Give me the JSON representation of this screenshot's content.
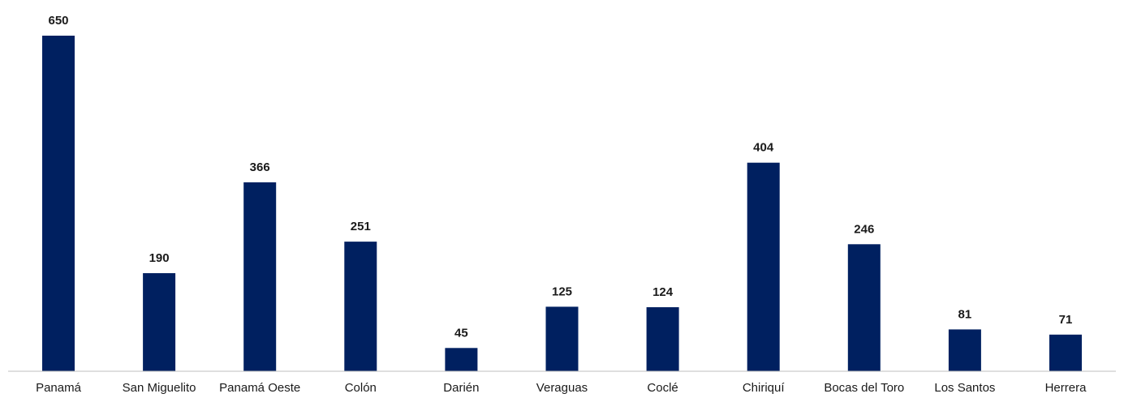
{
  "chart_data": {
    "type": "bar",
    "categories": [
      "Panamá",
      "San Miguelito",
      "Panamá Oeste",
      "Colón",
      "Darién",
      "Veraguas",
      "Coclé",
      "Chiriquí",
      "Bocas del Toro",
      "Los Santos",
      "Herrera"
    ],
    "values": [
      650,
      190,
      366,
      251,
      45,
      125,
      124,
      404,
      246,
      81,
      71
    ],
    "data_labels": [
      "650",
      "190",
      "366",
      "251",
      "45",
      "125",
      "124",
      "404",
      "246",
      "81",
      "71"
    ],
    "title": "",
    "xlabel": "",
    "ylabel": "",
    "ylim": [
      0,
      650
    ],
    "grid": false,
    "legend": "none",
    "bar_color": "#002060",
    "axis_color": "#bfbfbf"
  }
}
